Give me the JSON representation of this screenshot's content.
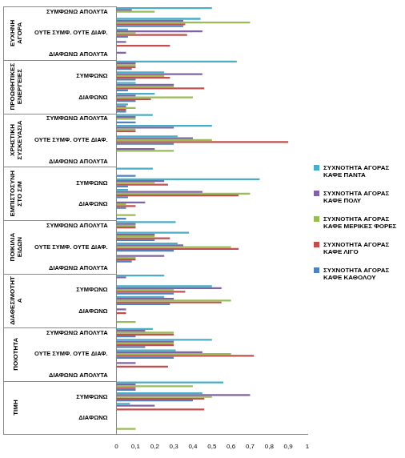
{
  "chart_data": {
    "type": "bar",
    "orientation": "horizontal",
    "legend": "right",
    "grid": false,
    "groups": [
      "ΕΥΧΗΝΗ ΑΓΟΡΑ",
      "ΠΡΟΩΘΗΤΙΚΕΣ ΕΝΕΡΓΕΙΕΣ",
      "ΧΡΗΣΤΙΚΗ ΣΥΣΚΕΥΑΣΙΑ",
      "ΕΜΠΙΣΤΟΣΥΝΗ ΣΤΟ Σ/Μ",
      "ΠΟΙΚΙΛΙΑ ΕΙΔΩΝ",
      "ΔΙΑΘΕΣΙΜΟΤΗΤΑ",
      "ΠΟΙΟΤΗΤΑ",
      "ΤΙΜΗ"
    ],
    "categories": [
      "ΣΥΜΦΩΝΩ ΑΠΟΛΥΤΑ",
      null,
      "ΟΥΤΕ ΣΥΜΦ. ΟΥΤΕ ΔΙΑΦ.",
      null,
      "ΔΙΑΦΩΝΩ ΑΠΟΛΥΤΑ",
      null,
      "ΣΥΜΦΩΝΩ",
      null,
      "ΔΙΑΦΩΝΩ",
      null,
      "ΣΥΜΦΩΝΩ ΑΠΟΛΥΤΑ",
      null,
      "ΟΥΤΕ ΣΥΜΦ. ΟΥΤΕ ΔΙΑΦ.",
      null,
      "ΔΙΑΦΩΝΩ ΑΠΟΛΥΤΑ",
      null,
      "ΣΥΜΦΩΝΩ",
      null,
      "ΔΙΑΦΩΝΩ",
      null,
      "ΣΥΜΦΩΝΩ ΑΠΟΛΥΤΑ",
      null,
      "ΟΥΤΕ ΣΥΜΦ. ΟΥΤΕ ΔΙΑΦ.",
      null,
      "ΔΙΑΦΩΝΩ ΑΠΟΛΥΤΑ",
      null,
      "ΣΥΜΦΩΝΩ",
      null,
      "ΔΙΑΦΩΝΩ",
      null,
      "ΣΥΜΦΩΝΩ ΑΠΟΛΥΤΑ",
      null,
      "ΟΥΤΕ ΣΥΜΦ. ΟΥΤΕ ΔΙΑΦ.",
      null,
      "ΔΙΑΦΩΝΩ ΑΠΟΛΥΤΑ",
      null,
      "ΣΥΜΦΩΝΩ",
      null,
      "ΔΙΑΦΩΝΩ",
      null
    ],
    "series": [
      {
        "name": "ΣΥΧΝΟΤΗΤΑ ΑΓΟΡΑΣ ΚΑΦΕ ΠΑΝΤΑ",
        "color": "#4bacc6",
        "values": [
          0.5,
          0.44,
          0.06,
          0,
          0,
          0.63,
          0.25,
          0.1,
          0.2,
          0.06,
          0.19,
          0.5,
          0.32,
          0,
          0,
          0.19,
          0.75,
          0.06,
          0,
          0,
          0.31,
          0.38,
          0.32,
          0,
          0,
          0.25,
          0.5,
          0.25,
          0,
          0,
          0.19,
          0.5,
          0.31,
          0,
          0,
          0.56,
          0.45,
          0.07,
          0,
          0
        ]
      },
      {
        "name": "ΣΥΧΝΟΤΗΤΑ ΑΓΟΡΑΣ ΚΑΦΕ ΠΟΛΥ",
        "color": "#8064a2",
        "values": [
          0.08,
          0.35,
          0.45,
          0.05,
          0.05,
          0.1,
          0.45,
          0.3,
          0.1,
          0.05,
          0.1,
          0.3,
          0.4,
          0.2,
          0,
          0,
          0.25,
          0.45,
          0.15,
          0,
          0.1,
          0.2,
          0.35,
          0.25,
          0,
          0.05,
          0.55,
          0.3,
          0.05,
          0,
          0.15,
          0.3,
          0.45,
          0.1,
          0,
          0.1,
          0.7,
          0.2,
          0,
          0
        ]
      },
      {
        "name": "ΣΥΧΝΟΤΗΤΑ ΑΓΟΡΑΣ ΚΑΦΕ ΜΕΡΙΚΕΣ ΦΟΡΕΣ",
        "color": "#9bbb59",
        "values": [
          0.2,
          0.7,
          0.1,
          0,
          0,
          0.1,
          0.25,
          0.3,
          0.4,
          0.1,
          0.1,
          0.1,
          0.5,
          0.3,
          0,
          0,
          0.2,
          0.7,
          0.05,
          0.1,
          0.1,
          0.2,
          0.6,
          0.1,
          0,
          0,
          0.3,
          0.6,
          0,
          0.1,
          0.3,
          0.3,
          0.6,
          0,
          0,
          0.4,
          0.5,
          0,
          0,
          0.1
        ]
      },
      {
        "name": "ΣΥΧΝΟΤΗΤΑ ΑΓΟΡΑΣ ΚΑΦΕ ΛΙΓΟ",
        "color": "#c0504d",
        "values": [
          0,
          0.36,
          0.37,
          0.28,
          0,
          0.1,
          0.28,
          0.46,
          0.18,
          0.05,
          0,
          0.1,
          0.9,
          0,
          0,
          0,
          0.27,
          0.64,
          0.1,
          0,
          0.1,
          0.28,
          0.64,
          0.1,
          0,
          0,
          0.36,
          0.55,
          0.05,
          0,
          0.3,
          0.3,
          0.72,
          0.27,
          0,
          0.1,
          0.46,
          0.46,
          0,
          0
        ]
      },
      {
        "name": "ΣΥΧΝΟΤΗΤΑ ΑΓΟΡΑΣ ΚΑΦΕ ΚΑΘΟΛΟΥ",
        "color": "#4f81bd",
        "values": [
          0,
          0.35,
          0.06,
          0,
          0,
          0.08,
          0.1,
          0.06,
          0.1,
          0.05,
          0.1,
          0,
          0.3,
          0,
          0,
          0.1,
          0.06,
          0.06,
          0.05,
          0.05,
          0,
          0.2,
          0.3,
          0.08,
          0,
          0,
          0.3,
          0.28,
          0,
          0,
          0.1,
          0.15,
          0.3,
          0,
          0,
          0.1,
          0.4,
          0,
          0,
          0
        ]
      }
    ],
    "xlim": [
      0,
      1
    ],
    "xticks": [
      0,
      {
        "value": 0.1,
        "label": "0,1"
      },
      {
        "value": 0.2,
        "label": "0,2"
      },
      {
        "value": 0.3,
        "label": "0,3"
      },
      {
        "value": 0.4,
        "label": "0,4"
      },
      {
        "value": 0.5,
        "label": "0,5"
      },
      {
        "value": 0.6,
        "label": "0,6"
      },
      {
        "value": 0.7,
        "label": "0,7"
      },
      {
        "value": 0.8,
        "label": "0,8"
      },
      {
        "value": 0.9,
        "label": "0,9"
      },
      1
    ]
  }
}
